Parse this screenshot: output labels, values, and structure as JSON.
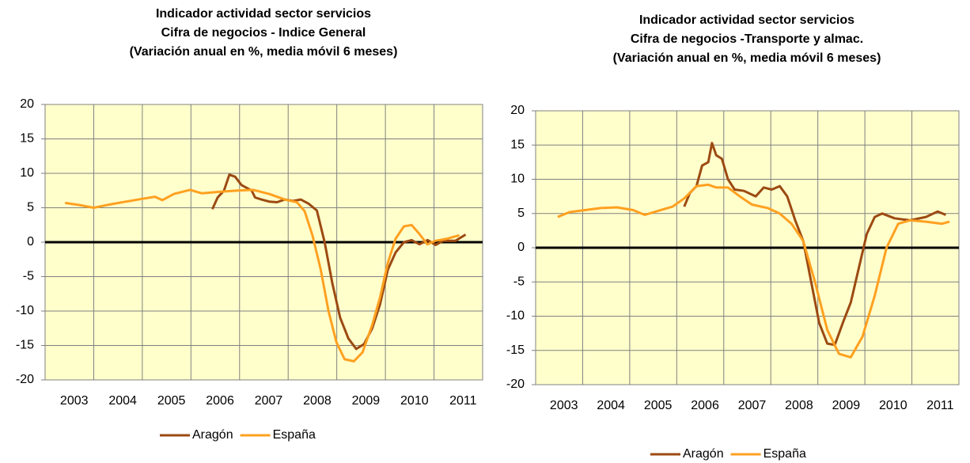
{
  "chart_data": [
    {
      "type": "line",
      "title": [
        "Indicador actividad sector servicios",
        "Cifra de negocios - Indice General",
        "(Variación anual en %, media móvil 6 meses)"
      ],
      "x_labels": [
        "2003",
        "2004",
        "2005",
        "2006",
        "2007",
        "2008",
        "2009",
        "2010",
        "2011"
      ],
      "xlim": [
        2003,
        2012
      ],
      "xgrid": [
        2004,
        2005,
        2006,
        2007,
        2008,
        2009,
        2010,
        2011
      ],
      "ylim": [
        -20,
        20
      ],
      "yticks": [
        -20,
        -15,
        -10,
        -5,
        0,
        5,
        10,
        15,
        20
      ],
      "grid": true,
      "zero_line": true,
      "plot_color": "#ffffcc",
      "legend": "bottom",
      "series": [
        {
          "name": "Aragón",
          "color": "#9c4a12",
          "x": [
            2006.44,
            2006.55,
            2006.68,
            2006.79,
            2006.91,
            2007.04,
            2007.25,
            2007.32,
            2007.45,
            2007.61,
            2007.77,
            2007.93,
            2008.1,
            2008.26,
            2008.42,
            2008.59,
            2008.75,
            2008.91,
            2009.07,
            2009.24,
            2009.4,
            2009.56,
            2009.73,
            2009.89,
            2010.05,
            2010.21,
            2010.38,
            2010.54,
            2010.7,
            2010.87,
            2011.03,
            2011.19,
            2011.44,
            2011.65
          ],
          "values": [
            4.8,
            6.5,
            7.5,
            9.8,
            9.5,
            8.3,
            7.5,
            6.5,
            6.2,
            5.9,
            5.8,
            6.2,
            6.0,
            6.2,
            5.6,
            4.6,
            0,
            -6,
            -11,
            -14,
            -15.5,
            -14.8,
            -12.5,
            -9,
            -4,
            -1.5,
            0,
            0.3,
            -0.3,
            0.3,
            -0.4,
            0.2,
            0.2,
            1.1
          ]
        },
        {
          "name": "España",
          "color": "#ffa020",
          "x": [
            2003.41,
            2003.7,
            2004.0,
            2004.35,
            2004.67,
            2005.0,
            2005.26,
            2005.41,
            2005.65,
            2005.98,
            2006.22,
            2006.55,
            2006.96,
            2007.28,
            2007.61,
            2007.93,
            2008.18,
            2008.34,
            2008.5,
            2008.67,
            2008.83,
            2008.99,
            2009.16,
            2009.35,
            2009.53,
            2009.73,
            2009.89,
            2010.05,
            2010.21,
            2010.38,
            2010.54,
            2010.7,
            2010.86,
            2011.03,
            2011.27,
            2011.52
          ],
          "values": [
            5.7,
            5.4,
            5.0,
            5.5,
            5.9,
            6.3,
            6.6,
            6.1,
            7.0,
            7.6,
            7.1,
            7.3,
            7.5,
            7.6,
            7.0,
            6.2,
            5.8,
            4.5,
            1.0,
            -4,
            -10,
            -14.5,
            -17,
            -17.3,
            -16,
            -12,
            -8,
            -3,
            0.5,
            2.3,
            2.5,
            1.2,
            -0.3,
            0.2,
            0.5,
            1.0
          ]
        }
      ]
    },
    {
      "type": "line",
      "title": [
        "Indicador actividad sector servicios",
        "Cifra de negocios -Transporte y almac.",
        "(Variación anual en %, media móvil 6 meses)"
      ],
      "x_labels": [
        "2003",
        "2004",
        "2005",
        "2006",
        "2007",
        "2008",
        "2009",
        "2010",
        "2011"
      ],
      "xlim": [
        2003,
        2012
      ],
      "xgrid": [
        2004,
        2005,
        2006,
        2007,
        2008,
        2009,
        2010,
        2011
      ],
      "ylim": [
        -20,
        20
      ],
      "yticks": [
        -20,
        -15,
        -10,
        -5,
        0,
        5,
        10,
        15,
        20
      ],
      "grid": true,
      "zero_line": true,
      "plot_color": "#ffffcc",
      "legend": "bottom",
      "series": [
        {
          "name": "Aragón",
          "color": "#9c4a12",
          "x": [
            2006.16,
            2006.28,
            2006.42,
            2006.54,
            2006.67,
            2006.75,
            2006.84,
            2006.96,
            2007.09,
            2007.23,
            2007.43,
            2007.68,
            2007.85,
            2008.02,
            2008.19,
            2008.35,
            2008.52,
            2008.69,
            2008.86,
            2009.03,
            2009.2,
            2009.36,
            2009.53,
            2009.7,
            2009.87,
            2010.04,
            2010.21,
            2010.37,
            2010.63,
            2010.96,
            2011.3,
            2011.55,
            2011.72
          ],
          "values": [
            6.0,
            8,
            9,
            12,
            12.5,
            15.3,
            13.5,
            13,
            10,
            8.5,
            8.3,
            7.5,
            8.8,
            8.5,
            9.0,
            7.5,
            4,
            1,
            -5,
            -11,
            -14,
            -14.2,
            -11,
            -8,
            -3,
            2,
            4.5,
            5.0,
            4.3,
            4.0,
            4.5,
            5.3,
            4.8
          ]
        },
        {
          "name": "España",
          "color": "#ffa020",
          "x": [
            2003.47,
            2003.72,
            2004.06,
            2004.4,
            2004.73,
            2005.07,
            2005.32,
            2005.66,
            2005.91,
            2006.16,
            2006.42,
            2006.67,
            2006.84,
            2007.09,
            2007.34,
            2007.6,
            2007.93,
            2008.19,
            2008.44,
            2008.69,
            2008.94,
            2009.2,
            2009.45,
            2009.7,
            2009.95,
            2010.21,
            2010.46,
            2010.71,
            2010.96,
            2011.3,
            2011.64,
            2011.8
          ],
          "values": [
            4.5,
            5.2,
            5.5,
            5.8,
            5.9,
            5.5,
            4.8,
            5.5,
            6.0,
            7.2,
            9.0,
            9.2,
            8.8,
            8.8,
            7.5,
            6.3,
            5.8,
            5.0,
            3.5,
            1.0,
            -5,
            -12,
            -15.5,
            -16,
            -13,
            -7,
            0,
            3.5,
            4.0,
            3.8,
            3.5,
            3.8
          ]
        }
      ]
    }
  ]
}
